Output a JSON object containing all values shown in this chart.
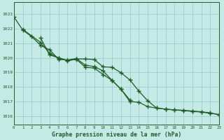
{
  "xlabel": "Graphe pression niveau de la mer (hPa)",
  "background_color": "#c5eae6",
  "grid_color": "#9dcfca",
  "line_color": "#1e5c28",
  "x_ticks": [
    0,
    1,
    2,
    3,
    4,
    5,
    6,
    7,
    8,
    9,
    10,
    11,
    12,
    13,
    14,
    15,
    16,
    17,
    18,
    19,
    20,
    21,
    22,
    23
  ],
  "ylim": [
    1015.4,
    1023.8
  ],
  "xlim": [
    0,
    23
  ],
  "y_ticks": [
    1016,
    1017,
    1018,
    1019,
    1020,
    1021,
    1022,
    1023
  ],
  "series": [
    [
      1022.8,
      1021.9,
      1021.4,
      1020.9,
      1020.6,
      1019.9,
      1019.85,
      1019.95,
      1019.5,
      1019.4,
      1019.1,
      1018.4,
      1017.8,
      1017.1
    ],
    [
      null,
      null,
      null,
      1020.8,
      1020.35,
      1019.9,
      1019.8,
      1019.9,
      1019.4,
      1019.35,
      1018.7,
      1018.0,
      1017.8,
      1017.05,
      null,
      null,
      null,
      null,
      null,
      null,
      null,
      null,
      null,
      null
    ],
    [
      null,
      null,
      null,
      null,
      null,
      null,
      null,
      null,
      null,
      null,
      null,
      null,
      null,
      1017.7,
      1017.05,
      1016.6,
      1016.5,
      1016.45,
      1016.4,
      1016.35,
      1016.3,
      1016.25,
      1016.2,
      1016.1
    ]
  ],
  "series_full": [
    {
      "x": [
        0,
        1,
        2,
        3,
        4,
        5,
        6,
        7,
        8,
        9,
        10,
        11,
        12,
        13
      ],
      "y": [
        1022.8,
        1021.9,
        1021.45,
        1020.85,
        1020.55,
        1019.9,
        1019.85,
        1019.95,
        1019.5,
        1019.4,
        1019.1,
        1018.45,
        1017.85,
        1017.1
      ]
    },
    {
      "x": [
        1,
        3,
        4,
        5,
        6,
        7,
        8,
        9,
        10,
        11,
        12,
        13,
        14,
        15,
        16,
        17,
        18,
        19,
        20,
        21,
        22,
        23
      ],
      "y": [
        1021.95,
        1021.05,
        1020.3,
        1020.0,
        1019.8,
        1019.9,
        1019.35,
        1019.3,
        1018.85,
        1018.45,
        1017.85,
        1017.0,
        1016.95,
        1016.65,
        1016.55,
        1016.48,
        1016.42,
        1016.38,
        1016.32,
        1016.28,
        1016.2,
        1016.1
      ]
    },
    {
      "x": [
        3,
        4,
        5,
        6,
        7,
        8,
        9,
        10,
        11,
        12,
        13,
        14,
        15,
        16,
        17,
        18,
        19,
        20,
        21,
        22,
        23
      ],
      "y": [
        1021.35,
        1020.2,
        1020.0,
        1019.82,
        1019.92,
        1019.92,
        1019.88,
        1019.38,
        1019.35,
        1018.98,
        1018.48,
        1017.72,
        1017.05,
        1016.55,
        1016.48,
        1016.43,
        1016.4,
        1016.35,
        1016.3,
        1016.22,
        1016.1
      ]
    }
  ]
}
